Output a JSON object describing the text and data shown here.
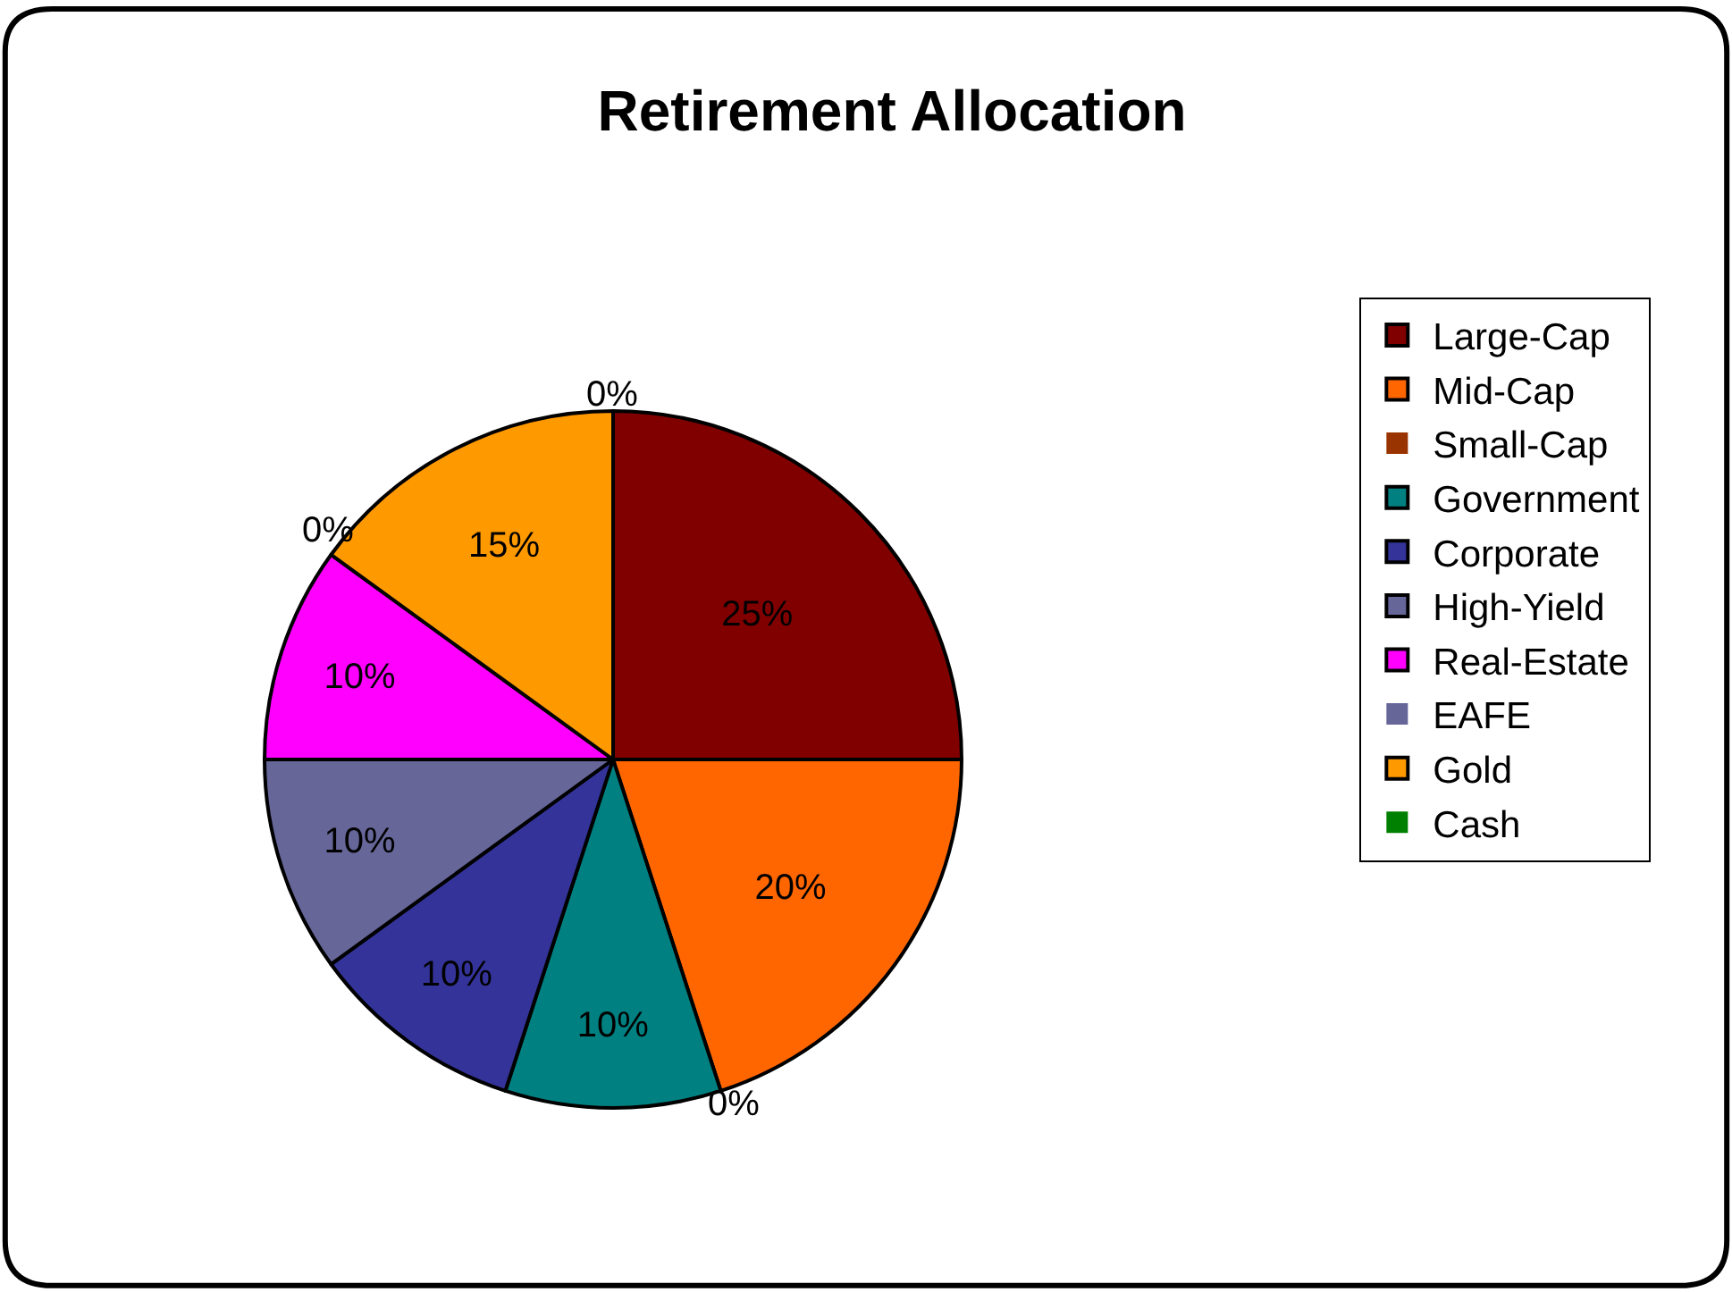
{
  "chart_data": {
    "type": "pie",
    "title": "Retirement Allocation",
    "categories": [
      "Large-Cap",
      "Mid-Cap",
      "Small-Cap",
      "Government",
      "Corporate",
      "High-Yield",
      "Real-Estate",
      "EAFE",
      "Gold",
      "Cash"
    ],
    "values": [
      25,
      20,
      0,
      10,
      10,
      10,
      10,
      0,
      15,
      0
    ],
    "value_labels": [
      "25%",
      "20%",
      "0%",
      "10%",
      "10%",
      "10%",
      "10%",
      "0%",
      "15%",
      "0%"
    ],
    "colors": [
      "#800000",
      "#ff6600",
      "#993300",
      "#008080",
      "#333399",
      "#666699",
      "#ff00ff",
      "#666699",
      "#ff9900",
      "#008000"
    ],
    "legend": "right"
  }
}
